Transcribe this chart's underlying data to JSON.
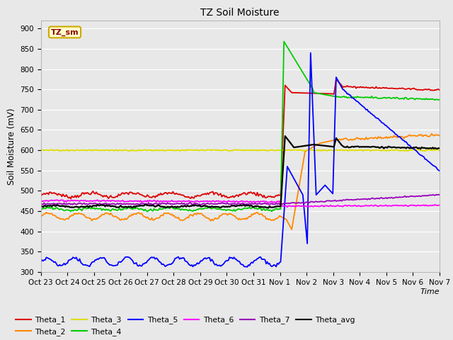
{
  "title": "TZ Soil Moisture",
  "ylabel": "Soil Moisture (mV)",
  "xlabel": "Time",
  "ylim": [
    300,
    920
  ],
  "yticks": [
    300,
    350,
    400,
    450,
    500,
    550,
    600,
    650,
    700,
    750,
    800,
    850,
    900
  ],
  "bg_color": "#e8e8e8",
  "series_colors": {
    "Theta_1": "#dd0000",
    "Theta_2": "#ff8800",
    "Theta_3": "#dddd00",
    "Theta_4": "#00cc00",
    "Theta_5": "#0000ff",
    "Theta_6": "#ff00ff",
    "Theta_7": "#9900bb",
    "Theta_avg": "#000000"
  },
  "legend_label": "TZ_sm",
  "tick_labels": [
    "Oct 23",
    "Oct 24",
    "Oct 25",
    "Oct 26",
    "Oct 27",
    "Oct 28",
    "Oct 29",
    "Oct 30",
    "Oct 31",
    "Nov 1",
    "Nov 2",
    "Nov 3",
    "Nov 4",
    "Nov 5",
    "Nov 6",
    "Nov 7"
  ],
  "n_days_pre": 9,
  "n_days_post": 6,
  "pts_per_day": 24
}
